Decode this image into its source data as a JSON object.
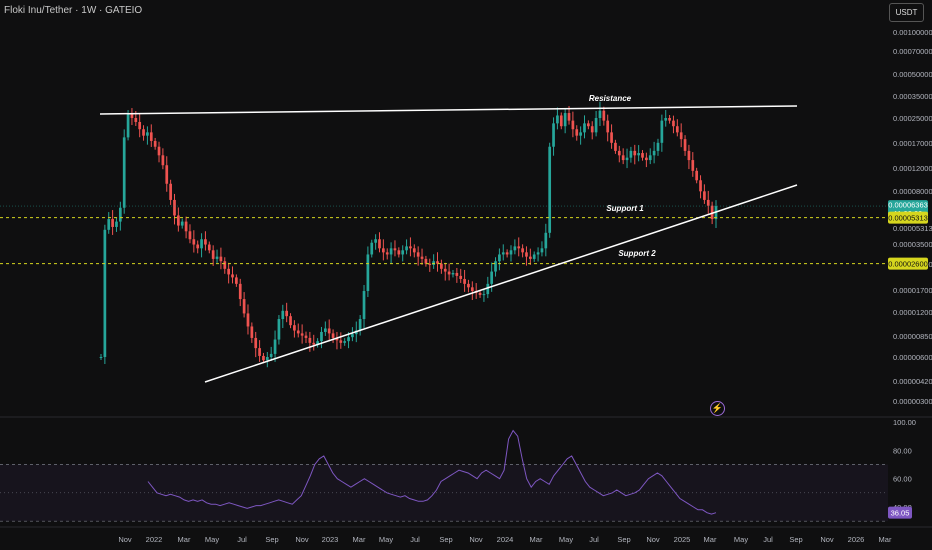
{
  "header": {
    "title": "Floki Inu/Tether · 1W · GATEIO",
    "currency": "USDT",
    "alert_icon": "lightning-icon"
  },
  "colors": {
    "background": "#0f0f10",
    "up": "#26a69a",
    "down": "#ef5350",
    "support_line": "#d6d61e",
    "rsi": "#7e57c2",
    "trendline": "#ffffff"
  },
  "chart_data": {
    "type": "candlestick",
    "symbol": "FLOKIUSDT",
    "scale": "log",
    "y_ticks": [
      "0.00100000",
      "0.00070000",
      "0.00050000",
      "0.00035000",
      "0.00025000",
      "0.00017000",
      "0.00012000",
      "0.00008000",
      "0.00005313",
      "0.00003500",
      "0.00002600",
      "0.00001700",
      "0.00001200",
      "0.00000850",
      "0.00000600",
      "0.00000420",
      "0.00000300"
    ],
    "x_ticks": [
      "Nov",
      "2022",
      "Mar",
      "May",
      "Jul",
      "Sep",
      "Nov",
      "2023",
      "Mar",
      "May",
      "Jul",
      "Sep",
      "Nov",
      "2024",
      "Mar",
      "May",
      "Jul",
      "Sep",
      "Nov",
      "2025",
      "Mar",
      "May",
      "Jul",
      "Sep",
      "Nov",
      "2026",
      "Mar"
    ],
    "price_badge": {
      "value": "0.00006363",
      "countdown": "11:02:20"
    },
    "level_badges": [
      {
        "label": "Support 1",
        "value": "0.00005313"
      },
      {
        "label": "Support 2",
        "value": "0.00002600"
      }
    ],
    "annotations": [
      {
        "text": "Resistance"
      },
      {
        "text": "Support 1"
      },
      {
        "text": "Support 2"
      }
    ],
    "series_close": [
      6.1e-06,
      4.4e-05,
      5.2e-05,
      4.6e-05,
      5e-05,
      6.2e-05,
      0.000185,
      0.00027,
      0.00025,
      0.000235,
      0.00021,
      0.00019,
      0.0002,
      0.000175,
      0.00016,
      0.00014,
      0.00012,
      9e-05,
      7e-05,
      5.5e-05,
      4.7e-05,
      5e-05,
      4.3e-05,
      3.8e-05,
      3.5e-05,
      3.3e-05,
      3.8e-05,
      3.5e-05,
      3.2e-05,
      2.8e-05,
      2.9e-05,
      2.7e-05,
      2.4e-05,
      2.2e-05,
      2.1e-05,
      1.9e-05,
      1.5e-05,
      1.2e-05,
      9.8e-06,
      8.2e-06,
      7e-06,
      6.2e-06,
      5.8e-06,
      6.1e-06,
      6.4e-06,
      8e-06,
      1.1e-05,
      1.25e-05,
      1.15e-05,
      1e-05,
      9.2e-06,
      8.8e-06,
      8.5e-06,
      8.2e-06,
      7.6e-06,
      7.4e-06,
      7.8e-06,
      9e-06,
      9.5e-06,
      8.8e-06,
      8.2e-06,
      7.9e-06,
      7.6e-06,
      7.8e-06,
      8.3e-06,
      8.7e-06,
      9.2e-06,
      1.1e-05,
      1.7e-05,
      3e-05,
      3.6e-05,
      3.8e-05,
      3.3e-05,
      3.1e-05,
      3e-05,
      3.3e-05,
      3.2e-05,
      3e-05,
      3.2e-05,
      3.4e-05,
      3.3e-05,
      3.1e-05,
      2.9e-05,
      2.8e-05,
      2.6e-05,
      2.55e-05,
      2.7e-05,
      2.6e-05,
      2.4e-05,
      2.3e-05,
      2.2e-05,
      2.25e-05,
      2.15e-05,
      2.05e-05,
      1.9e-05,
      1.8e-05,
      1.7e-05,
      1.65e-05,
      1.6e-05,
      1.62e-05,
      1.9e-05,
      2.3e-05,
      2.7e-05,
      3e-05,
      3.1e-05,
      3e-05,
      3.2e-05,
      3.4e-05,
      3.3e-05,
      3.1e-05,
      2.9e-05,
      2.8e-05,
      3e-05,
      3.1e-05,
      3.3e-05,
      4.2e-05,
      0.00016,
      0.00023,
      0.00026,
      0.00022,
      0.00027,
      0.00024,
      0.00021,
      0.00019,
      0.0002,
      0.00023,
      0.00022,
      0.0002,
      0.00025,
      0.00028,
      0.00024,
      0.0002,
      0.00017,
      0.00015,
      0.00014,
      0.00013,
      0.000135,
      0.00015,
      0.00014,
      0.000145,
      0.000135,
      0.00013,
      0.00014,
      0.00015,
      0.00017,
      0.00024,
      0.00025,
      0.00024,
      0.00022,
      0.0002,
      0.00018,
      0.00015,
      0.00013,
      0.00011,
      9.5e-05,
      8e-05,
      7e-05,
      6.4e-05,
      5.2e-05,
      6.36e-05
    ],
    "rsi": {
      "type": "line",
      "y_ticks": [
        "100.00",
        "80.00",
        "60.00",
        "40.00"
      ],
      "upper_band": 70,
      "lower_band": 30,
      "current": "36.05",
      "values": [
        58,
        54,
        50,
        49,
        48,
        49,
        48,
        47,
        45,
        44,
        45,
        44,
        45,
        43,
        42,
        42,
        41,
        42,
        43,
        42,
        41,
        40,
        39,
        40,
        41,
        41,
        42,
        43,
        44,
        45,
        44,
        43,
        42,
        45,
        48,
        55,
        62,
        70,
        74,
        76,
        70,
        64,
        60,
        58,
        56,
        54,
        56,
        58,
        60,
        58,
        56,
        54,
        52,
        50,
        49,
        48,
        47,
        48,
        46,
        45,
        44,
        44,
        45,
        48,
        52,
        58,
        60,
        62,
        64,
        66,
        65,
        64,
        62,
        60,
        64,
        66,
        64,
        62,
        60,
        66,
        88,
        94,
        90,
        74,
        60,
        54,
        58,
        60,
        58,
        56,
        62,
        66,
        70,
        74,
        76,
        70,
        64,
        58,
        54,
        52,
        50,
        48,
        49,
        50,
        52,
        50,
        48,
        49,
        50,
        52,
        56,
        60,
        62,
        64,
        62,
        58,
        54,
        50,
        46,
        44,
        42,
        40,
        38,
        38,
        36,
        35,
        36
      ]
    }
  }
}
